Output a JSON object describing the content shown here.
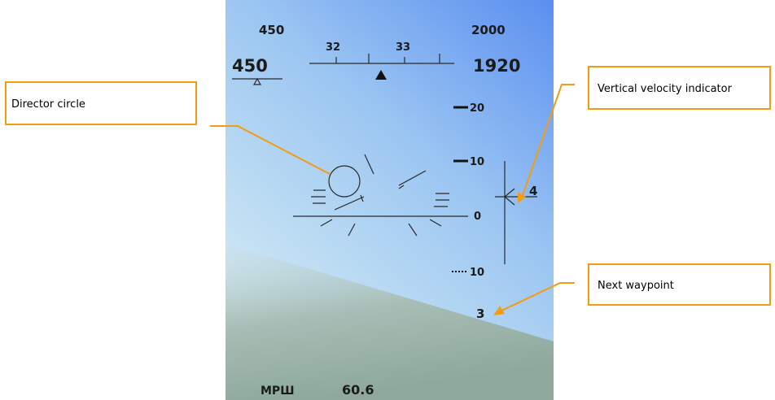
{
  "hud": {
    "speed_set": "450",
    "altitude_set": "2000",
    "heading_scale": [
      "32",
      "33"
    ],
    "speed": "450",
    "altitude": "1920",
    "pitch_ladder": [
      "20",
      "10",
      "0",
      "10"
    ],
    "vertical_velocity": "4",
    "waypoint": "3",
    "mode": "МРШ",
    "range": "60.6"
  },
  "callouts": [
    "Director circle",
    "Vertical velocity indicator",
    "Next waypoint"
  ]
}
